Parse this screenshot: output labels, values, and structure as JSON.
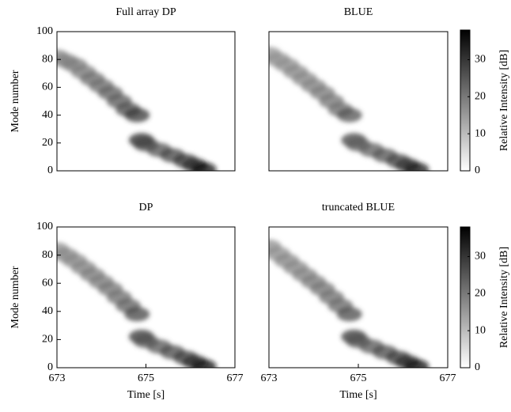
{
  "chart_data": [
    {
      "type": "heatmap",
      "title": "Full array DP",
      "ylabel": "Mode number",
      "xlim": [
        673,
        677
      ],
      "ylim": [
        0,
        100
      ],
      "yticks": [
        0,
        20,
        40,
        60,
        80,
        100
      ],
      "x": [
        673.0,
        673.2,
        673.4,
        673.6,
        673.8,
        674.0,
        674.2,
        674.4,
        674.6,
        674.8,
        674.9,
        675.0,
        675.3,
        675.6,
        675.9,
        676.1,
        676.3
      ],
      "y": [
        82,
        79,
        76,
        71,
        66,
        61,
        56,
        50,
        44,
        40,
        22,
        19,
        15,
        11,
        7,
        4,
        1
      ],
      "values": [
        18,
        19,
        20,
        20,
        22,
        22,
        24,
        25,
        27,
        30,
        32,
        28,
        26,
        28,
        30,
        32,
        36
      ]
    },
    {
      "type": "heatmap",
      "title": "BLUE",
      "xlim": [
        673,
        677
      ],
      "ylim": [
        0,
        100
      ],
      "x": [
        673.0,
        673.2,
        673.4,
        673.6,
        673.8,
        674.0,
        674.2,
        674.4,
        674.6,
        674.8,
        674.9,
        675.0,
        675.3,
        675.6,
        675.9,
        676.1,
        676.3
      ],
      "y": [
        84,
        80,
        76,
        71,
        66,
        61,
        56,
        50,
        44,
        40,
        22,
        19,
        15,
        11,
        7,
        4,
        1
      ],
      "values": [
        16,
        17,
        17,
        18,
        18,
        19,
        20,
        21,
        22,
        26,
        28,
        24,
        24,
        26,
        28,
        30,
        34
      ]
    },
    {
      "type": "heatmap",
      "title": "DP",
      "ylabel": "Mode number",
      "xlabel": "Time [s]",
      "xlim": [
        673,
        677
      ],
      "ylim": [
        0,
        100
      ],
      "xticks": [
        673,
        675,
        677
      ],
      "yticks": [
        0,
        20,
        40,
        60,
        80,
        100
      ],
      "x": [
        673.0,
        673.2,
        673.4,
        673.6,
        673.8,
        674.0,
        674.2,
        674.4,
        674.6,
        674.8,
        674.9,
        675.0,
        675.3,
        675.6,
        675.9,
        676.1,
        676.3
      ],
      "y": [
        84,
        80,
        76,
        71,
        66,
        61,
        56,
        50,
        44,
        38,
        22,
        19,
        15,
        11,
        7,
        4,
        1
      ],
      "values": [
        17,
        18,
        18,
        19,
        20,
        20,
        21,
        22,
        24,
        28,
        30,
        26,
        25,
        27,
        29,
        31,
        35
      ]
    },
    {
      "type": "heatmap",
      "title": "truncated BLUE",
      "xlabel": "Time [s]",
      "xlim": [
        673,
        677
      ],
      "ylim": [
        0,
        100
      ],
      "xticks": [
        673,
        675,
        677
      ],
      "x": [
        673.0,
        673.2,
        673.4,
        673.6,
        673.8,
        674.0,
        674.2,
        674.4,
        674.6,
        674.8,
        674.9,
        675.0,
        675.3,
        675.6,
        675.9,
        676.1,
        676.3
      ],
      "y": [
        86,
        81,
        76,
        71,
        66,
        61,
        56,
        50,
        44,
        38,
        22,
        19,
        15,
        11,
        7,
        4,
        1
      ],
      "values": [
        17,
        17,
        18,
        18,
        19,
        20,
        21,
        22,
        23,
        27,
        30,
        26,
        25,
        27,
        29,
        31,
        35
      ]
    },
    {
      "type": "colorbar",
      "ylabel": "Relative Intensity [dB]",
      "ylim": [
        0,
        38
      ],
      "yticks": [
        0,
        10,
        20,
        30
      ]
    },
    {
      "type": "colorbar",
      "ylabel": "Relative Intensity [dB]",
      "ylim": [
        0,
        38
      ],
      "yticks": [
        0,
        10,
        20,
        30
      ]
    }
  ]
}
